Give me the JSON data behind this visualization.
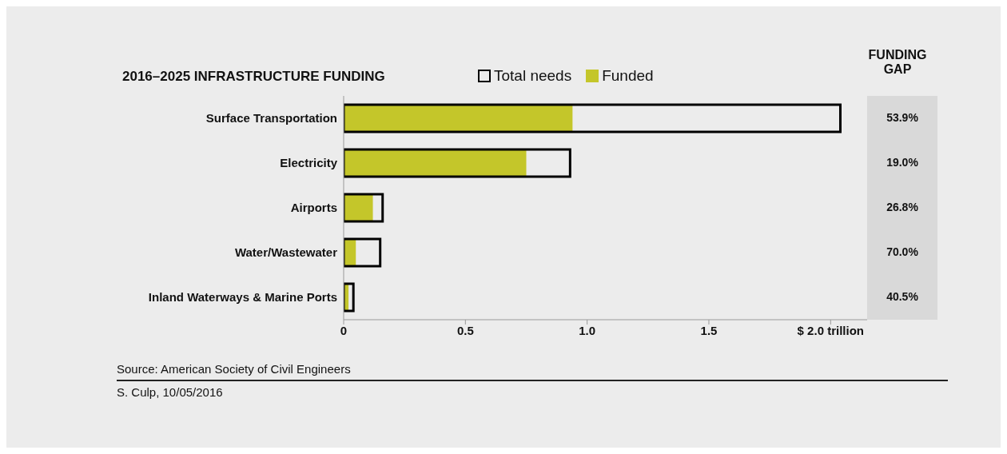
{
  "chart_data": {
    "type": "bar",
    "orientation": "horizontal",
    "title": "2016–2025 INFRASTRUCTURE FUNDING",
    "categories": [
      "Surface Transportation",
      "Electricity",
      "Airports",
      "Water/Wastewater",
      "Inland Waterways & Marine Ports"
    ],
    "series": [
      {
        "name": "Total needs",
        "color": "#000000",
        "values": [
          2.04,
          0.93,
          0.16,
          0.15,
          0.04
        ]
      },
      {
        "name": "Funded",
        "color": "#c4c62a",
        "values": [
          0.94,
          0.75,
          0.12,
          0.05,
          0.02
        ]
      }
    ],
    "xlim": [
      0,
      2.15
    ],
    "xticks": [
      0,
      0.5,
      {
        "value": 1,
        "label": "1.0"
      },
      1.5,
      {
        "value": 2,
        "label": "$ 2.0 trillion"
      }
    ],
    "legend": "top",
    "annotations": [
      "FUNDING GAP",
      "53.9%",
      "19.0%",
      "26.8%",
      "70.0%",
      "40.5%",
      "Source: American Society of Civil Engineers",
      "S. Culp, 10/05/2016"
    ]
  }
}
